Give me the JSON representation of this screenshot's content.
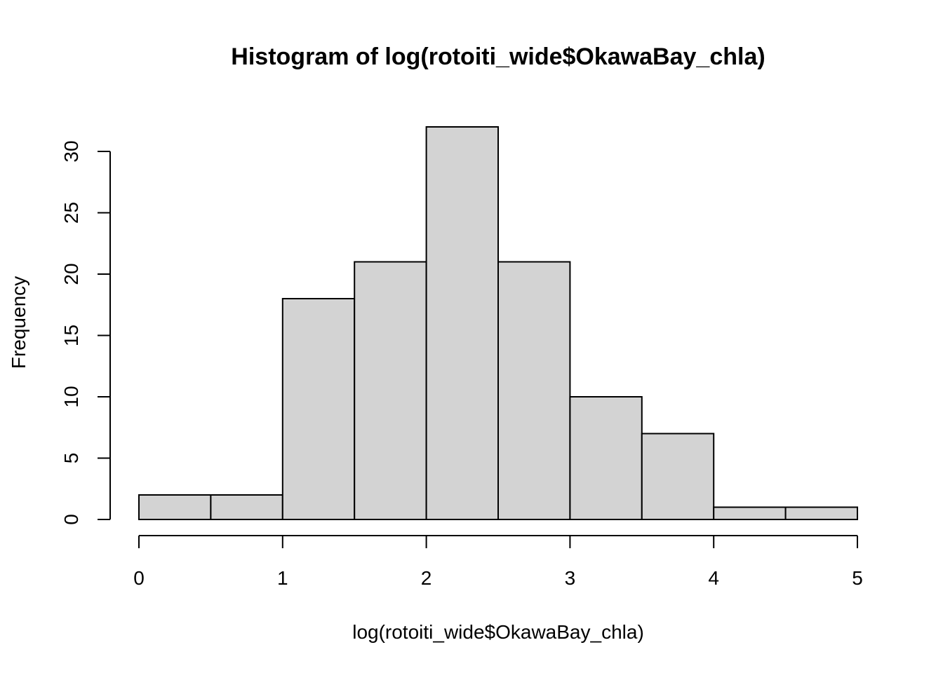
{
  "chart_data": {
    "type": "bar",
    "title": "Histogram of log(rotoiti_wide$OkawaBay_chla)",
    "xlabel": "log(rotoiti_wide$OkawaBay_chla)",
    "ylabel": "Frequency",
    "bins": [
      {
        "start": 0.0,
        "end": 0.5,
        "count": 2
      },
      {
        "start": 0.5,
        "end": 1.0,
        "count": 2
      },
      {
        "start": 1.0,
        "end": 1.5,
        "count": 18
      },
      {
        "start": 1.5,
        "end": 2.0,
        "count": 21
      },
      {
        "start": 2.0,
        "end": 2.5,
        "count": 32
      },
      {
        "start": 2.5,
        "end": 3.0,
        "count": 21
      },
      {
        "start": 3.0,
        "end": 3.5,
        "count": 10
      },
      {
        "start": 3.5,
        "end": 4.0,
        "count": 7
      },
      {
        "start": 4.0,
        "end": 4.5,
        "count": 1
      },
      {
        "start": 4.5,
        "end": 5.0,
        "count": 1
      }
    ],
    "xlim": [
      0,
      5
    ],
    "ylim": [
      0,
      32
    ],
    "x_ticks": [
      "0",
      "1",
      "2",
      "3",
      "4",
      "5"
    ],
    "y_ticks": [
      "0",
      "5",
      "10",
      "15",
      "20",
      "25",
      "30"
    ],
    "grid": false,
    "legend": "none",
    "colors": {
      "bar_fill": "#d3d3d3",
      "bar_stroke": "#000000"
    }
  }
}
